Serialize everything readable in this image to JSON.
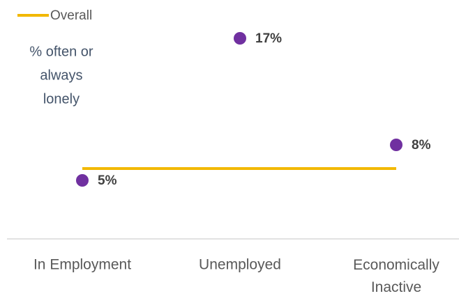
{
  "chart_data": {
    "type": "dot",
    "ylabel": [
      "% often or",
      "always",
      "lonely"
    ],
    "categories": [
      "In Employment",
      "Unemployed",
      "Economically Inactive"
    ],
    "values": [
      5,
      17,
      8
    ],
    "value_labels": [
      "5%",
      "17%",
      "8%"
    ],
    "color": "#7030a0",
    "overall": {
      "name": "Overall",
      "value": 6,
      "color": "#f2b800"
    },
    "ylim": [
      0,
      20
    ]
  }
}
